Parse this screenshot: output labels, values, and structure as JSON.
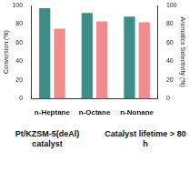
{
  "chart_data": {
    "type": "bar",
    "categories": [
      "n-Heptane",
      "n-Octane",
      "n-Nonane"
    ],
    "y_label": "Conversion (%)",
    "y2_label": "Aromatics Selectivity (%)",
    "ylim": [
      0,
      100
    ],
    "yticks": [
      0,
      20,
      40,
      60,
      80,
      100
    ],
    "y2lim": [
      0,
      100
    ],
    "y2ticks": [
      0,
      20,
      40,
      60,
      80,
      100
    ],
    "grid": false,
    "series": [
      {
        "color": "#3e8e88",
        "values": [
          97,
          92,
          88
        ]
      },
      {
        "color": "#f28b8b",
        "values": [
          75,
          83,
          82
        ],
        "axis": "y2"
      }
    ],
    "annotations": [
      "Pt/KZSM-5(deAl) catalyst",
      "Catalyst lifetime > 80 h"
    ]
  }
}
